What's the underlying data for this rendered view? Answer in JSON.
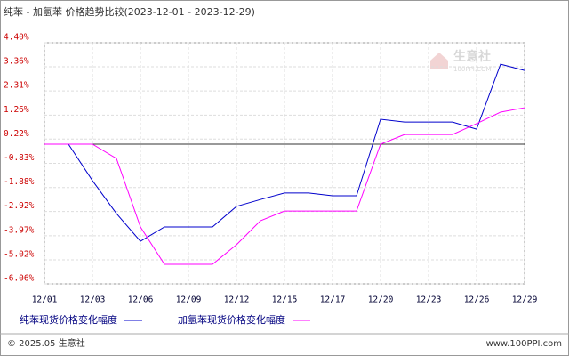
{
  "chart_data": {
    "type": "line",
    "title": "纯苯 - 加氢苯 价格趋势比较(2023-12-01 - 2023-12-29)",
    "categories": [
      "12/01",
      null,
      "12/03",
      null,
      "12/06",
      null,
      "12/09",
      null,
      "12/12",
      null,
      "12/15",
      null,
      "12/17",
      null,
      "12/20",
      null,
      "12/23",
      null,
      "12/26",
      null,
      "12/29"
    ],
    "series": [
      {
        "name": "纯苯现货价格变化幅度",
        "color": "#0000cc",
        "values": [
          0,
          0,
          -1.58,
          -3.01,
          -4.21,
          -3.59,
          -3.59,
          -3.59,
          -2.7,
          -2.4,
          -2.12,
          -2.12,
          -2.24,
          -2.24,
          1.08,
          0.96,
          0.96,
          0.96,
          0.65,
          3.47,
          3.2
        ]
      },
      {
        "name": "加氢苯现货价格变化幅度",
        "color": "#ff00ff",
        "values": [
          0,
          0,
          0,
          -0.62,
          -3.59,
          -5.21,
          -5.21,
          -5.21,
          -4.36,
          -3.32,
          -2.9,
          -2.9,
          -2.9,
          -2.9,
          0,
          0.42,
          0.42,
          0.42,
          0.89,
          1.39,
          1.58
        ]
      }
    ],
    "ylim": [
      -6.06,
      4.4
    ],
    "yticks": [
      {
        "value": 4.4,
        "label": "4.40%"
      },
      {
        "value": 3.36,
        "label": "3.36%"
      },
      {
        "value": 2.31,
        "label": "2.31%"
      },
      {
        "value": 1.26,
        "label": "1.26%"
      },
      {
        "value": 0.22,
        "label": "0.22%"
      },
      {
        "value": -0.83,
        "label": "-0.83%"
      },
      {
        "value": -1.88,
        "label": "-1.88%"
      },
      {
        "value": -2.92,
        "label": "-2.92%"
      },
      {
        "value": -3.97,
        "label": "-3.97%"
      },
      {
        "value": -5.02,
        "label": "-5.02%"
      },
      {
        "value": -6.06,
        "label": "-6.06%"
      }
    ],
    "grid": true,
    "watermark": {
      "name": "生意社",
      "site": "100PPI.COM"
    },
    "footer": {
      "left": "© 2025.05 生意社",
      "right": "www.100PPI.com"
    }
  }
}
